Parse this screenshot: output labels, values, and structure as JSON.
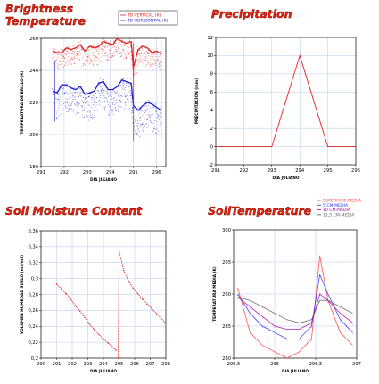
{
  "chart_data": [
    {
      "type": "scatter",
      "title_lines": [
        "Brightness",
        "Temperature"
      ],
      "xlabel": "DIA JULIANO",
      "ylabel": "TEMPERATURA DE BRILLO (K)",
      "xlim": [
        291,
        296.4
      ],
      "ylim": [
        180,
        260
      ],
      "xticks": [
        "291",
        "292",
        "293",
        "294",
        "295",
        "296"
      ],
      "yticks": [
        "180",
        "200",
        "220",
        "240",
        "260"
      ],
      "grid": true,
      "legend_position": "top-right",
      "colors": {
        "vertical": "#e02020",
        "horizontal": "#1c1cc8",
        "title": "#e8230f"
      },
      "series": [
        {
          "name": "TB VERTICAL (K)",
          "x": [
            291.5,
            291.7,
            291.9,
            292.1,
            292.3,
            292.5,
            292.7,
            292.9,
            293.1,
            293.3,
            293.5,
            293.7,
            293.9,
            294.1,
            294.3,
            294.5,
            294.7,
            294.9,
            295.0,
            295.2,
            295.4,
            295.6,
            295.8,
            296.0,
            296.2
          ],
          "y": [
            252,
            251,
            251,
            254,
            253,
            254,
            256,
            252,
            255,
            254,
            255,
            258,
            257,
            256,
            260,
            258,
            257,
            258,
            242,
            253,
            255,
            254,
            251,
            252,
            250
          ]
        },
        {
          "name": "TB HORIZONTAL (K)",
          "x": [
            291.5,
            291.7,
            291.9,
            292.1,
            292.3,
            292.5,
            292.7,
            292.9,
            293.1,
            293.3,
            293.5,
            293.7,
            293.9,
            294.1,
            294.3,
            294.5,
            294.7,
            294.9,
            295.0,
            295.2,
            295.4,
            295.6,
            295.8,
            296.0,
            296.2
          ],
          "y": [
            227,
            226,
            231,
            231,
            229,
            228,
            230,
            225,
            226,
            227,
            232,
            233,
            228,
            228,
            230,
            234,
            233,
            232,
            218,
            215,
            218,
            220,
            219,
            217,
            215
          ]
        }
      ]
    },
    {
      "type": "line",
      "title": "Precipitation",
      "xlabel": "DIA JULIANO",
      "ylabel": "PRECIPITACION (mm)",
      "xlim": [
        291,
        296
      ],
      "ylim": [
        -2,
        12
      ],
      "xticks": [
        "291",
        "292",
        "293",
        "294",
        "295",
        "296"
      ],
      "yticks": [
        "-2",
        "0",
        "2",
        "4",
        "6",
        "8",
        "10",
        "12"
      ],
      "grid": true,
      "colors": {
        "line": "#e02020"
      },
      "series": [
        {
          "x": [
            291,
            292,
            293,
            294,
            295,
            296
          ],
          "y": [
            0,
            0,
            0,
            10,
            0,
            0
          ]
        }
      ]
    },
    {
      "type": "line",
      "title": "Soil Moisture Content",
      "xlabel": "DIA JULIANO",
      "ylabel": "VOLUMEN HUMEDAD SUELO (m3/m3)",
      "xlim": [
        290,
        298
      ],
      "ylim": [
        0.2,
        0.36
      ],
      "xticks": [
        "290",
        "291",
        "292",
        "293",
        "294",
        "295",
        "296",
        "297",
        "298"
      ],
      "yticks": [
        "0,2",
        "0,22",
        "0,24",
        "0,26",
        "0,28",
        "0,3",
        "0,32",
        "0,34",
        "0,36"
      ],
      "grid": true,
      "colors": {
        "line": "#e02020"
      },
      "series": [
        {
          "x": [
            291.0,
            291.3,
            291.6,
            291.9,
            292.2,
            292.5,
            292.8,
            293.1,
            293.4,
            293.7,
            294.0,
            294.3,
            294.6,
            294.8
          ],
          "y": [
            0.293,
            0.287,
            0.281,
            0.274,
            0.266,
            0.259,
            0.251,
            0.243,
            0.236,
            0.23,
            0.224,
            0.219,
            0.214,
            0.21
          ]
        },
        {
          "x": [
            294.95,
            295.0,
            295.3,
            295.6,
            295.9,
            296.2,
            296.5,
            296.8,
            297.1,
            297.4,
            297.7,
            298.0
          ],
          "y": [
            0.2,
            0.335,
            0.31,
            0.297,
            0.288,
            0.281,
            0.274,
            0.268,
            0.262,
            0.256,
            0.25,
            0.244
          ]
        }
      ]
    },
    {
      "type": "line",
      "title": "SoilTemperature",
      "xlabel": "DIA JULIANO",
      "ylabel": "TEMPERATURA MEDIA (K)",
      "xlim": [
        295.5,
        297
      ],
      "ylim": [
        280,
        300
      ],
      "xticks": [
        "295,5",
        "296",
        "296,5",
        "297"
      ],
      "yticks": [
        "280",
        "285",
        "290",
        "295",
        "300"
      ],
      "grid": true,
      "legend_position": "top-right",
      "colors": {
        "surface": "#ff4040",
        "cm5": "#3030ff",
        "cm10": "#b000b0",
        "cm125": "#606060"
      },
      "series": [
        {
          "name": "SUPERFICIE-MEDIA",
          "x": [
            295.55,
            295.7,
            295.85,
            296.0,
            296.15,
            296.3,
            296.45,
            296.55,
            296.65,
            296.8,
            296.95
          ],
          "y": [
            291,
            284,
            282,
            281,
            280,
            281,
            283,
            296,
            289,
            284,
            282
          ]
        },
        {
          "name": "5 CM-MEDIA",
          "x": [
            295.55,
            295.7,
            295.85,
            296.0,
            296.15,
            296.3,
            296.45,
            296.55,
            296.65,
            296.8,
            296.95
          ],
          "y": [
            290,
            287,
            285,
            284,
            283,
            283,
            285,
            293,
            290,
            286,
            284
          ]
        },
        {
          "name": "10 CM-MEDIA",
          "x": [
            295.55,
            295.7,
            295.85,
            296.0,
            296.15,
            296.3,
            296.45,
            296.55,
            296.65,
            296.8,
            296.95
          ],
          "y": [
            289.5,
            288,
            286.5,
            285,
            284.5,
            284.5,
            285.5,
            290,
            289,
            287,
            285.5
          ]
        },
        {
          "name": "12,5 CM-MEDIA",
          "x": [
            295.55,
            295.7,
            295.85,
            296.0,
            296.15,
            296.3,
            296.45,
            296.55,
            296.65,
            296.8,
            296.95
          ],
          "y": [
            289.5,
            289,
            288,
            287,
            286,
            285.5,
            286,
            289,
            289,
            288,
            287
          ]
        }
      ]
    }
  ]
}
